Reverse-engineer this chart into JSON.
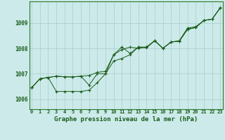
{
  "title": "Graphe pression niveau de la mer (hPa)",
  "background_color": "#cceaea",
  "grid_color": "#aacccc",
  "line_color": "#1a5c1a",
  "x_ticks": [
    0,
    1,
    2,
    3,
    4,
    5,
    6,
    7,
    8,
    9,
    10,
    11,
    12,
    13,
    14,
    15,
    16,
    17,
    18,
    19,
    20,
    21,
    22,
    23
  ],
  "ylim": [
    1005.6,
    1009.85
  ],
  "y_ticks": [
    1006,
    1007,
    1008,
    1009
  ],
  "line1": [
    1006.45,
    1006.8,
    1006.85,
    1006.9,
    1006.88,
    1006.87,
    1006.9,
    1006.93,
    1007.05,
    1007.1,
    1007.75,
    1007.95,
    1008.05,
    1008.0,
    1008.05,
    1008.3,
    1008.0,
    1008.25,
    1008.3,
    1008.8,
    1008.85,
    1009.1,
    1009.15,
    1009.6
  ],
  "line2": [
    1006.45,
    1006.8,
    1006.85,
    1006.3,
    1006.3,
    1006.3,
    1006.3,
    1006.35,
    1006.65,
    1007.0,
    1007.5,
    1007.6,
    1007.75,
    1008.05,
    1008.02,
    1008.3,
    1008.0,
    1008.25,
    1008.28,
    1008.75,
    1008.82,
    1009.1,
    1009.15,
    1009.6
  ],
  "line3": [
    1006.45,
    1006.8,
    1006.85,
    1006.9,
    1006.88,
    1006.87,
    1006.9,
    1006.55,
    1007.0,
    1007.0,
    1007.75,
    1008.05,
    1007.8,
    1008.05,
    1008.05,
    1008.3,
    1008.0,
    1008.25,
    1008.28,
    1008.75,
    1008.82,
    1009.1,
    1009.15,
    1009.6
  ],
  "tick_fontsize": 5,
  "ylabel_fontsize": 5.5,
  "xlabel_fontsize": 6.5
}
